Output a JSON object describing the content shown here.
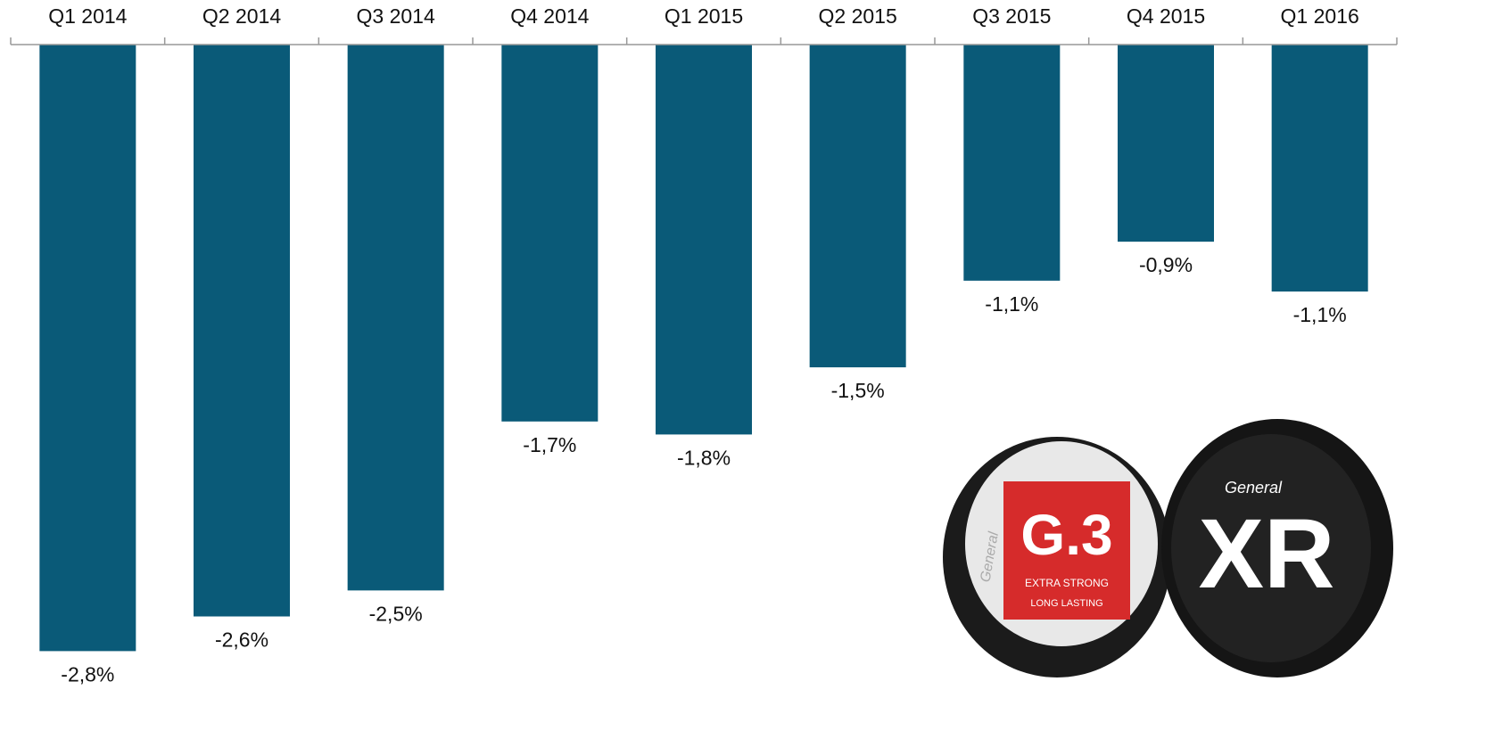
{
  "chart_data": {
    "type": "bar",
    "categories": [
      "Q1 2014",
      "Q2 2014",
      "Q3 2014",
      "Q4 2014",
      "Q1 2015",
      "Q2 2015",
      "Q3 2015",
      "Q4 2015",
      "Q1 2016"
    ],
    "values": [
      -2.8,
      -2.64,
      -2.52,
      -1.74,
      -1.8,
      -1.49,
      -1.09,
      -0.91,
      -1.14
    ],
    "value_labels": [
      "-2,8%",
      "-2,6%",
      "-2,5%",
      "-1,7%",
      "-1,8%",
      "-1,5%",
      "-1,1%",
      "-0,9%",
      "-1,1%"
    ],
    "color": "#0a5a78",
    "ylim": [
      -3,
      0
    ],
    "photo_labels": [
      "G.3",
      "EXTRA STRONG",
      "LONG LASTING",
      "General",
      "XR",
      "General"
    ]
  }
}
